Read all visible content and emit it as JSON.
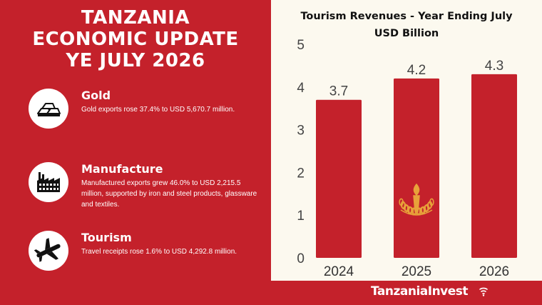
{
  "header": {
    "title_lines": [
      "TANZANIA",
      "ECONOMIC UPDATE",
      "YE JULY 2026"
    ]
  },
  "highlights": [
    {
      "icon": "gold-bars-icon",
      "title": "Gold",
      "description": "Gold exports rose 37.4% to USD 5,670.7 million."
    },
    {
      "icon": "factory-icon",
      "title": "Manufacture",
      "description": "Manufactured exports grew 46.0% to USD 2,215.5 million, supported by iron and steel products, glassware and textiles."
    },
    {
      "icon": "airplane-icon",
      "title": "Tourism",
      "description": "Travel receipts rose 1.6% to USD 4,292.8 million."
    }
  ],
  "chart_data": {
    "type": "bar",
    "title_lines": [
      "Tourism Revenues - Year Ending July",
      "USD Billion"
    ],
    "categories": [
      "2024",
      "2025",
      "2026"
    ],
    "values": [
      3.7,
      4.2,
      4.3
    ],
    "data_labels": [
      "3.7",
      "4.2",
      "4.3"
    ],
    "ylim": [
      0,
      5
    ],
    "yticks": [
      "0",
      "1",
      "2",
      "3",
      "4",
      "5"
    ],
    "xlabel": "",
    "ylabel": "",
    "grid": false,
    "bar_color": "#c4212b",
    "watermark": "central-bank-emblem"
  },
  "footer": {
    "brand": "TanzaniaInvest"
  },
  "colors": {
    "primary_red": "#c4212b",
    "cream": "#fcf9ef",
    "white": "#ffffff"
  }
}
